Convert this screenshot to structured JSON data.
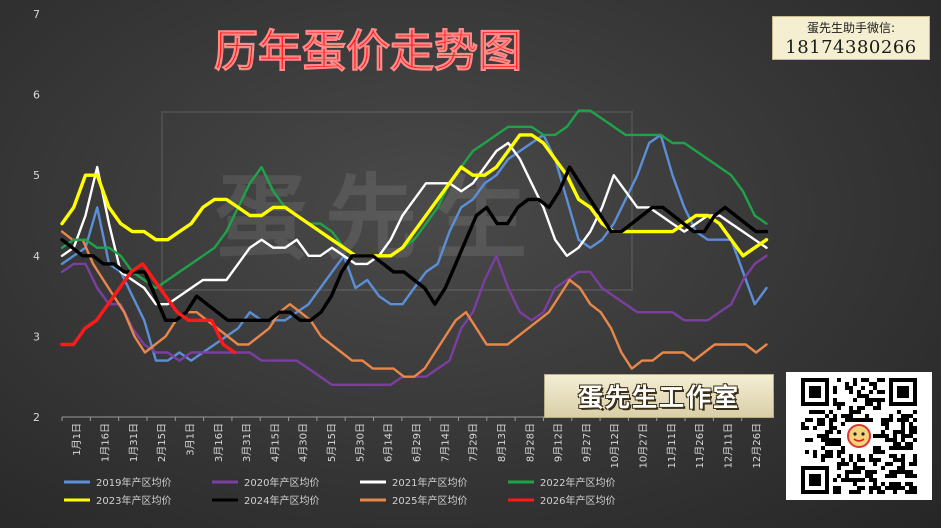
{
  "chart_data": {
    "type": "line",
    "title": "历年蛋价走势图",
    "ylim": [
      2,
      7
    ],
    "y_ticks": [
      "2",
      "3",
      "4",
      "5",
      "6",
      "7"
    ],
    "x_ticks": [
      "1月1日",
      "1月16日",
      "1月31日",
      "2月15日",
      "3月1日",
      "3月16日",
      "3月31日",
      "4月15日",
      "4月30日",
      "5月15日",
      "5月30日",
      "6月14日",
      "6月29日",
      "7月14日",
      "7月29日",
      "8月13日",
      "8月28日",
      "9月12日",
      "9月27日",
      "10月12日",
      "10月27日",
      "11月11日",
      "11月26日",
      "12月11日",
      "12月26日"
    ],
    "grid": false,
    "legend_position": "bottom",
    "series": [
      {
        "name": "2019年产区均价",
        "color": "#5b8fd6",
        "values": [
          3.9,
          4.0,
          4.1,
          4.6,
          3.9,
          3.8,
          3.5,
          3.2,
          2.7,
          2.7,
          2.8,
          2.7,
          2.8,
          2.9,
          3.0,
          3.1,
          3.3,
          3.2,
          3.2,
          3.2,
          3.3,
          3.4,
          3.6,
          3.8,
          4.0,
          3.6,
          3.7,
          3.5,
          3.4,
          3.4,
          3.6,
          3.8,
          3.9,
          4.3,
          4.6,
          4.7,
          4.9,
          5.0,
          5.2,
          5.3,
          5.4,
          5.5,
          5.2,
          4.7,
          4.2,
          4.1,
          4.2,
          4.4,
          4.7,
          5.0,
          5.4,
          5.5,
          5.0,
          4.6,
          4.3,
          4.2,
          4.2,
          4.2,
          3.8,
          3.4,
          3.6
        ]
      },
      {
        "name": "2020年产区均价",
        "color": "#7a3fa0",
        "values": [
          3.8,
          3.9,
          3.9,
          3.6,
          3.4,
          3.4,
          3.1,
          2.9,
          2.8,
          2.8,
          2.7,
          2.8,
          2.8,
          2.8,
          2.8,
          2.8,
          2.8,
          2.7,
          2.7,
          2.7,
          2.7,
          2.6,
          2.5,
          2.4,
          2.4,
          2.4,
          2.4,
          2.4,
          2.4,
          2.5,
          2.5,
          2.5,
          2.6,
          2.7,
          3.1,
          3.3,
          3.7,
          4.0,
          3.6,
          3.3,
          3.2,
          3.3,
          3.6,
          3.7,
          3.8,
          3.8,
          3.6,
          3.5,
          3.4,
          3.3,
          3.3,
          3.3,
          3.3,
          3.2,
          3.2,
          3.2,
          3.3,
          3.4,
          3.7,
          3.9,
          4.0
        ]
      },
      {
        "name": "2021年产区均价",
        "color": "#ffffff",
        "values": [
          4.0,
          4.1,
          4.5,
          5.1,
          4.4,
          3.8,
          3.7,
          3.6,
          3.4,
          3.4,
          3.5,
          3.6,
          3.7,
          3.7,
          3.7,
          3.9,
          4.1,
          4.2,
          4.1,
          4.1,
          4.2,
          4.0,
          4.0,
          4.1,
          4.0,
          3.9,
          3.9,
          4.0,
          4.2,
          4.5,
          4.7,
          4.9,
          4.9,
          4.9,
          4.8,
          4.9,
          5.1,
          5.3,
          5.4,
          5.2,
          4.9,
          4.6,
          4.2,
          4.0,
          4.1,
          4.3,
          4.6,
          5.0,
          4.8,
          4.6,
          4.6,
          4.5,
          4.4,
          4.3,
          4.4,
          4.5,
          4.5,
          4.4,
          4.3,
          4.2,
          4.1
        ]
      },
      {
        "name": "2022年产区均价",
        "color": "#1fa24a",
        "values": [
          4.1,
          4.2,
          4.2,
          4.1,
          4.1,
          4.0,
          3.8,
          3.7,
          3.6,
          3.7,
          3.8,
          3.9,
          4.0,
          4.1,
          4.3,
          4.6,
          4.9,
          5.1,
          4.8,
          4.6,
          4.5,
          4.4,
          4.4,
          4.3,
          4.1,
          4.0,
          4.0,
          4.0,
          4.0,
          4.1,
          4.2,
          4.4,
          4.6,
          4.9,
          5.1,
          5.3,
          5.4,
          5.5,
          5.6,
          5.6,
          5.6,
          5.5,
          5.5,
          5.6,
          5.8,
          5.8,
          5.7,
          5.6,
          5.5,
          5.5,
          5.5,
          5.5,
          5.4,
          5.4,
          5.3,
          5.2,
          5.1,
          5.0,
          4.8,
          4.5,
          4.4
        ]
      },
      {
        "name": "2023年产区均价",
        "color": "#ffff00",
        "values": [
          4.4,
          4.6,
          5.0,
          5.0,
          4.6,
          4.4,
          4.3,
          4.3,
          4.2,
          4.2,
          4.3,
          4.4,
          4.6,
          4.7,
          4.7,
          4.6,
          4.5,
          4.5,
          4.6,
          4.6,
          4.5,
          4.4,
          4.3,
          4.2,
          4.1,
          4.0,
          4.0,
          4.0,
          4.0,
          4.1,
          4.3,
          4.5,
          4.7,
          4.9,
          5.1,
          5.0,
          5.0,
          5.1,
          5.3,
          5.5,
          5.5,
          5.4,
          5.2,
          5.0,
          4.7,
          4.6,
          4.4,
          4.3,
          4.3,
          4.3,
          4.3,
          4.3,
          4.3,
          4.4,
          4.5,
          4.5,
          4.4,
          4.2,
          4.0,
          4.1,
          4.2
        ]
      },
      {
        "name": "2024年产区均价",
        "color": "#000000",
        "values": [
          4.2,
          4.1,
          4.0,
          4.0,
          3.9,
          3.9,
          3.8,
          3.8,
          3.8,
          3.5,
          3.2,
          3.2,
          3.3,
          3.5,
          3.4,
          3.3,
          3.2,
          3.2,
          3.2,
          3.2,
          3.2,
          3.3,
          3.3,
          3.2,
          3.2,
          3.3,
          3.5,
          3.8,
          4.0,
          4.0,
          4.0,
          3.9,
          3.8,
          3.8,
          3.7,
          3.6,
          3.4,
          3.6,
          3.9,
          4.2,
          4.5,
          4.6,
          4.4,
          4.4,
          4.6,
          4.7,
          4.7,
          4.6,
          4.8,
          5.1,
          4.9,
          4.7,
          4.5,
          4.3,
          4.3,
          4.4,
          4.5,
          4.6,
          4.6,
          4.5,
          4.4,
          4.3,
          4.3,
          4.5,
          4.6,
          4.5,
          4.4,
          4.3,
          4.3
        ]
      },
      {
        "name": "2025年产区均价",
        "color": "#e8874a",
        "values": [
          4.3,
          4.2,
          4.2,
          3.9,
          3.7,
          3.5,
          3.3,
          3.0,
          2.8,
          2.9,
          3.0,
          3.2,
          3.3,
          3.3,
          3.2,
          3.1,
          3.0,
          2.9,
          2.9,
          3.0,
          3.1,
          3.3,
          3.4,
          3.3,
          3.2,
          3.0,
          2.9,
          2.8,
          2.7,
          2.7,
          2.6,
          2.6,
          2.6,
          2.5,
          2.5,
          2.6,
          2.8,
          3.0,
          3.2,
          3.3,
          3.1,
          2.9,
          2.9,
          2.9,
          3.0,
          3.1,
          3.2,
          3.3,
          3.5,
          3.7,
          3.6,
          3.4,
          3.3,
          3.1,
          2.8,
          2.6,
          2.7,
          2.7,
          2.8,
          2.8,
          2.8,
          2.7,
          2.8,
          2.9,
          2.9,
          2.9,
          2.9,
          2.8,
          2.9
        ]
      },
      {
        "name": "2026年产区均价",
        "color": "#ff1a1a",
        "values": [
          2.9,
          2.9,
          3.1,
          3.2,
          3.4,
          3.6,
          3.8,
          3.9,
          3.7,
          3.5,
          3.3,
          3.2,
          3.2,
          3.2,
          2.9,
          2.8
        ]
      }
    ]
  },
  "contact": {
    "line1": "蛋先生助手微信:",
    "line2": "18174380266"
  },
  "brand": {
    "studio": "蛋先生工作室",
    "watermark": "蛋先生"
  }
}
